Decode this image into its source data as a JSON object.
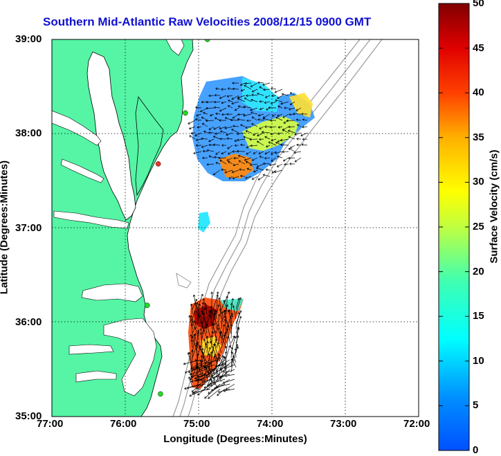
{
  "title": "Southern Mid-Atlantic Raw Velocities 2008/12/15 0900 GMT",
  "axes": {
    "xlabel": "Longitude (Degrees:Minutes)",
    "ylabel": "Latitude (Degrees:Minutes)",
    "x_ticks": [
      "77:00",
      "76:00",
      "75:00",
      "74:00",
      "73:00",
      "72:00"
    ],
    "y_ticks": [
      "39:00",
      "38:00",
      "37:00",
      "36:00",
      "35:00"
    ],
    "xlim": [
      -77,
      -72
    ],
    "ylim": [
      35,
      39
    ]
  },
  "colorbar": {
    "label": "Surface Velocity (cm/s)",
    "ticks": [
      "50",
      "45",
      "40",
      "35",
      "30",
      "25",
      "20",
      "15",
      "10",
      "5",
      "0"
    ],
    "range": [
      0,
      50
    ]
  },
  "colors": {
    "land": "#55f5a5",
    "water": "#ffffff",
    "title": "#1010d0",
    "bathymetry": "#9a9a9a",
    "station_active": "#22dd22",
    "station_inactive": "#ee3322"
  },
  "stations": [
    {
      "lon": -74.88,
      "lat": 39.0,
      "status": "active"
    },
    {
      "lon": -75.18,
      "lat": 38.22,
      "status": "active"
    },
    {
      "lon": -75.55,
      "lat": 37.68,
      "status": "inactive"
    },
    {
      "lon": -75.7,
      "lat": 36.18,
      "status": "active"
    },
    {
      "lon": -75.52,
      "lat": 35.24,
      "status": "active"
    }
  ]
}
